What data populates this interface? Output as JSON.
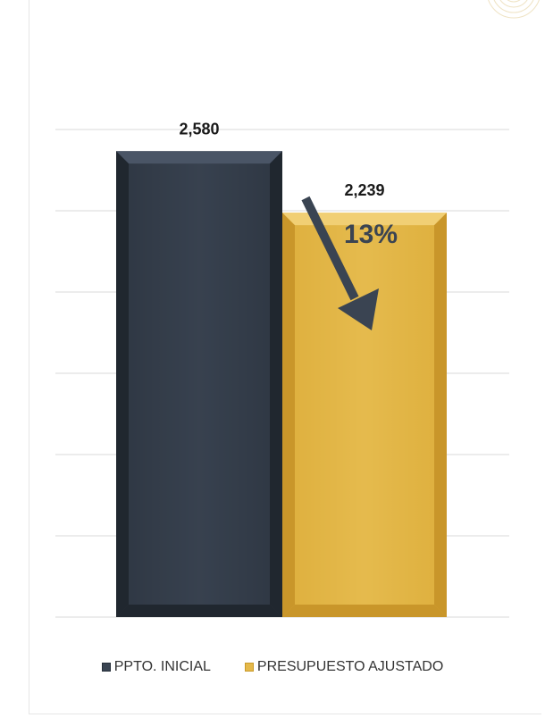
{
  "chart_data": {
    "type": "bar",
    "categories": [
      "PPTO. INICIAL",
      "PRESUPUESTO AJUSTADO"
    ],
    "values": [
      2580,
      2239
    ],
    "data_labels": [
      "2,580",
      "2,239"
    ],
    "colors": [
      "#3a4452",
      "#e5b94a"
    ],
    "ylim": [
      0,
      2700
    ],
    "y_tick_step": 450,
    "y_tick_labels_visible": false,
    "grid": true,
    "legend": "bottom",
    "annotation": {
      "text": "13%",
      "arrow": "down-right",
      "color": "#3a4452"
    }
  },
  "legend": {
    "items": [
      {
        "label": "PPTO. INICIAL",
        "color": "#3a4452"
      },
      {
        "label": "PRESUPUESTO AJUSTADO",
        "color": "#e5b94a"
      }
    ]
  }
}
